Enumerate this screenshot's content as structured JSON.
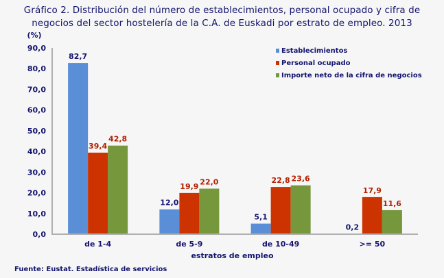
{
  "chart_data": {
    "type": "bar",
    "title": "Gráfico 2. Distribución del número de establecimientos, personal ocupado y cifra de negocios del sector hostelería de la C.A. de Euskadi por estrato de empleo. 2013",
    "title_lines": [
      "Gráfico 2. Distribución del número de establecimientos, personal ocupado y cifra de",
      "negocios del sector hostelería de la C.A. de Euskadi por estrato de empleo. 2013"
    ],
    "ylabel": "(%)",
    "xlabel": "estratos de empleo",
    "ylim": [
      0,
      90
    ],
    "yticks": [
      "0,0",
      "10,0",
      "20,0",
      "30,0",
      "40,0",
      "50,0",
      "60,0",
      "70,0",
      "80,0",
      "90,0"
    ],
    "grid": false,
    "legend_placement": "top-right",
    "categories": [
      "de 1-4",
      "de 5-9",
      "de 10-49",
      ">= 50"
    ],
    "series": [
      {
        "name": "Establecimientos",
        "color": "#5a8fd8",
        "values": [
          82.7,
          12.0,
          5.1,
          0.2
        ],
        "labels": [
          "82,7",
          "12,0",
          "5,1",
          "0,2"
        ]
      },
      {
        "name": "Personal ocupado",
        "color": "#cc3300",
        "values": [
          39.4,
          19.9,
          22.8,
          17.9
        ],
        "labels": [
          "39,4",
          "19,9",
          "22,8",
          "17,9"
        ]
      },
      {
        "name": "Importe neto de la cifra de negocios",
        "color": "#76973c",
        "values": [
          42.8,
          22.0,
          23.6,
          11.6
        ],
        "labels": [
          "42,8",
          "22,0",
          "23,6",
          "11,6"
        ]
      }
    ],
    "source": "Fuente: Eustat. Estadística de servicios"
  }
}
